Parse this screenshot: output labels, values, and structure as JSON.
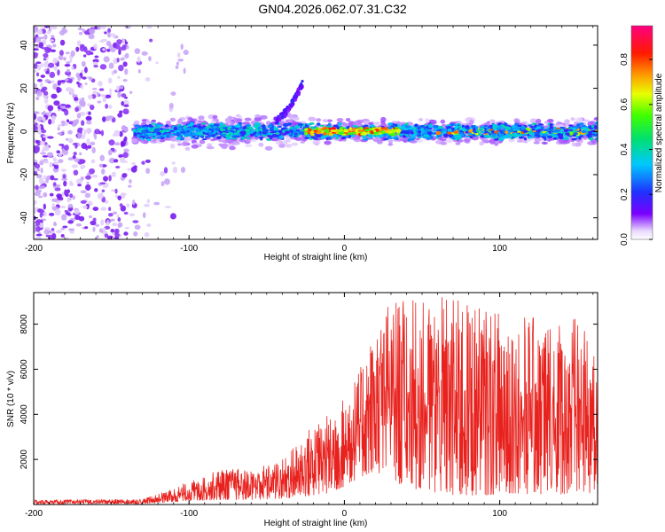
{
  "title": "GN04.2026.062.07.31.C32",
  "colors": {
    "snr_line": "#e8231f",
    "axis": "#000000",
    "speckle": "#8a2be2"
  },
  "chart_data": [
    {
      "type": "heatmap",
      "title": "GN04.2026.062.07.31.C32",
      "xlabel": "Height of straight line (km)",
      "ylabel": "Frequency (Hz)",
      "xlim": [
        -200,
        163
      ],
      "ylim": [
        -50,
        49
      ],
      "xticks": [
        -200,
        -100,
        0,
        100
      ],
      "yticks": [
        -40,
        -20,
        0,
        20,
        40
      ],
      "xtick_labels": [
        "-200",
        "-100",
        "0",
        "100"
      ],
      "ytick_labels": [
        "-40",
        "-20",
        "0",
        "20",
        "40"
      ],
      "colorbar": {
        "label": "Normalized spectral amplitude",
        "range": [
          0.0,
          0.95
        ],
        "ticks": [
          0.0,
          0.2,
          0.4,
          0.6,
          0.8
        ],
        "tick_labels": [
          "0.0",
          "0.2",
          "0.4",
          "0.6",
          "0.8"
        ]
      },
      "features": {
        "noise_region_x": [
          -200,
          -110
        ],
        "signal_band_center_hz": 0,
        "signal_band_halfwidth_hz": 4,
        "signal_band_x": [
          -135,
          163
        ],
        "upward_streak": {
          "x": [
            -45,
            -27
          ],
          "y": [
            5,
            22
          ]
        }
      }
    },
    {
      "type": "line",
      "xlabel": "Height of straight line (km)",
      "ylabel": "SNR (10 * v/v)",
      "xlim": [
        -200,
        163
      ],
      "ylim": [
        0,
        9400
      ],
      "xticks": [
        -200,
        -100,
        0,
        100
      ],
      "yticks": [
        2000,
        4000,
        6000,
        8000
      ],
      "xtick_labels": [
        "-200",
        "-100",
        "0",
        "100"
      ],
      "ytick_labels": [
        "2000",
        "4000",
        "6000",
        "8000"
      ],
      "envelope": {
        "x": [
          -200,
          -130,
          -115,
          -100,
          -80,
          -60,
          -40,
          -20,
          -10,
          0,
          10,
          20,
          30,
          50,
          70,
          90,
          110,
          130,
          150,
          163
        ],
        "baseline": [
          20,
          30,
          80,
          150,
          200,
          200,
          250,
          400,
          500,
          800,
          1200,
          1500,
          1000,
          600,
          400,
          400,
          500,
          400,
          500,
          500
        ],
        "peak": [
          200,
          250,
          600,
          1000,
          1600,
          1600,
          2000,
          3600,
          4000,
          4800,
          6000,
          8000,
          9200,
          9000,
          9300,
          8800,
          8500,
          8200,
          8400,
          6400
        ]
      }
    }
  ]
}
